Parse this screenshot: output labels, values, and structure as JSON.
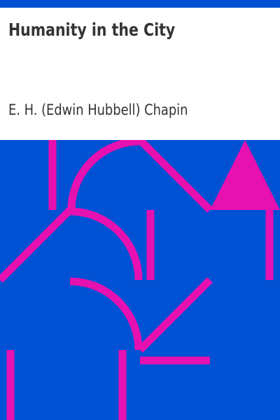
{
  "book": {
    "title": "Humanity in the City",
    "author": "E. H. (Edwin Hubbell) Chapin"
  },
  "colors": {
    "top_bar": "#0051d4",
    "background": "#0051d4",
    "pattern": "#e710b0",
    "text": "#333333"
  }
}
